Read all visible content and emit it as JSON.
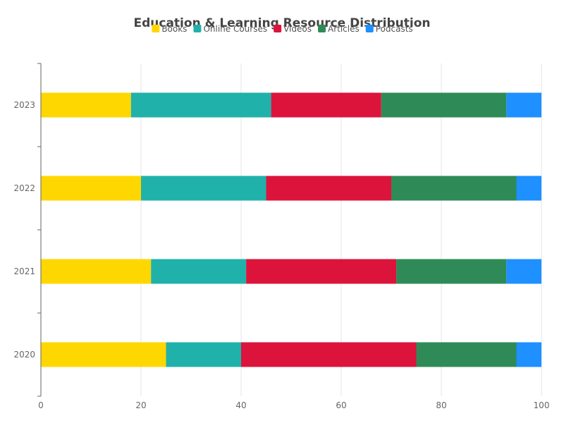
{
  "chart_data": {
    "type": "bar",
    "orientation": "horizontal",
    "stacked": true,
    "title": "Education & Learning Resource Distribution",
    "categories": [
      "2020",
      "2021",
      "2022",
      "2023"
    ],
    "series": [
      {
        "name": "Books",
        "color": "#FFD700",
        "values": [
          25,
          22,
          20,
          18
        ]
      },
      {
        "name": "Online Courses",
        "color": "#20B2AA",
        "values": [
          15,
          19,
          25,
          28
        ]
      },
      {
        "name": "Videos",
        "color": "#DC143C",
        "values": [
          35,
          30,
          25,
          22
        ]
      },
      {
        "name": "Articles",
        "color": "#2E8B57",
        "values": [
          20,
          22,
          25,
          25
        ]
      },
      {
        "name": "Podcasts",
        "color": "#1E90FF",
        "values": [
          5,
          7,
          5,
          7
        ]
      }
    ],
    "xlim": [
      0,
      100
    ],
    "xticks": [
      "0",
      "20",
      "40",
      "60",
      "80",
      "100"
    ],
    "grid": "vertical",
    "legend_position": "top"
  }
}
